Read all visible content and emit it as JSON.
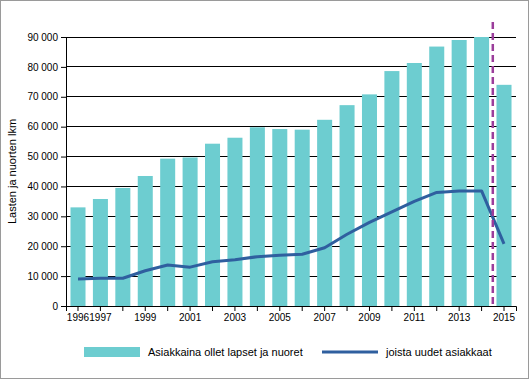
{
  "chart_data": {
    "type": "bar",
    "y_label": "Lasten ja nuorten lkm",
    "categories": [
      "1996",
      "1997",
      null,
      "1999",
      null,
      "2001",
      null,
      "2003",
      null,
      "2005",
      null,
      "2007",
      null,
      "2009",
      null,
      "2011",
      null,
      "2013",
      null,
      "2015"
    ],
    "series": [
      {
        "name": "Asiakkaina ollet lapset ja nuoret",
        "type": "bar",
        "color": "#6dcdd0",
        "values": [
          33000,
          35800,
          39500,
          43500,
          49300,
          49700,
          54300,
          56300,
          59800,
          59200,
          59000,
          62300,
          67200,
          70800,
          78600,
          81300,
          86800,
          89000,
          90000,
          74000
        ]
      },
      {
        "name": "joista uudet asiakkaat",
        "type": "line",
        "color": "#2f5f9f",
        "values": [
          9000,
          9300,
          9300,
          11800,
          13700,
          13000,
          14800,
          15500,
          16500,
          17000,
          17300,
          19500,
          24000,
          28000,
          31500,
          35000,
          38000,
          38500,
          38500,
          20800
        ]
      }
    ],
    "ylim": [
      0,
      90000
    ],
    "yticks": [
      0,
      {
        "value": 10000,
        "label": "10 000"
      },
      {
        "value": 20000,
        "label": "20 000"
      },
      {
        "value": 30000,
        "label": "30 000"
      },
      {
        "value": 40000,
        "label": "40 000"
      },
      {
        "value": 50000,
        "label": "50 000"
      },
      {
        "value": 60000,
        "label": "60 000"
      },
      {
        "value": 70000,
        "label": "70 000"
      },
      {
        "value": 80000,
        "label": "80 000"
      },
      {
        "value": 90000,
        "label": "90 000"
      }
    ],
    "grid": true,
    "legend": "bottom"
  }
}
